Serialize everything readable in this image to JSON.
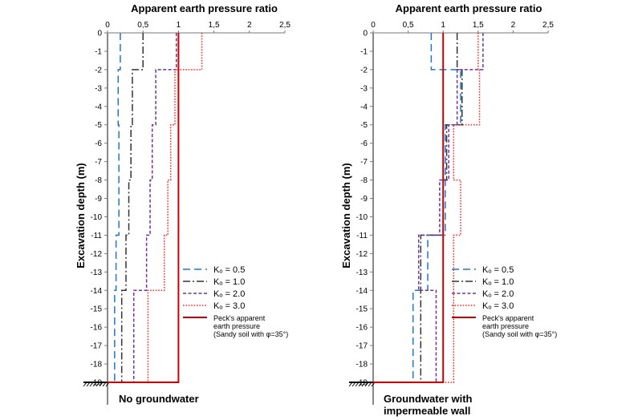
{
  "chart_data": [
    {
      "type": "line",
      "title": "Apparent earth pressure ratio",
      "ylabel": "Excavation depth (m)",
      "caption": [
        "No groundwater"
      ],
      "xlim": [
        0,
        2.5
      ],
      "ylim": [
        -19,
        0
      ],
      "x_ticks": [
        "0",
        "0,5",
        "1",
        "1,5",
        "2",
        "2,5"
      ],
      "y_ticks": [
        "0",
        "-1",
        "-2",
        "-3",
        "-4",
        "-5",
        "-6",
        "-7",
        "-8",
        "-9",
        "-10",
        "-11",
        "-12",
        "-13",
        "-14",
        "-15",
        "-16",
        "-17",
        "-18",
        "-19"
      ],
      "series": [
        {
          "name": "Ko = 0.5",
          "color": "#1f77c8",
          "dash": "long-dash",
          "segments": [
            [
              0.18,
              0,
              -2
            ],
            [
              0.15,
              -2,
              -5
            ],
            [
              0.16,
              -5,
              -11
            ],
            [
              0.12,
              -11,
              -14
            ],
            [
              0.1,
              -14,
              -19
            ]
          ]
        },
        {
          "name": "Ko = 1.0",
          "color": "#333333",
          "dash": "dash-dot",
          "segments": [
            [
              0.5,
              0,
              -2
            ],
            [
              0.35,
              -2,
              -5
            ],
            [
              0.33,
              -5,
              -8
            ],
            [
              0.3,
              -8,
              -11
            ],
            [
              0.26,
              -11,
              -14
            ],
            [
              0.2,
              -14,
              -19
            ]
          ]
        },
        {
          "name": "Ko = 2.0",
          "color": "#7030a0",
          "dash": "short-dash",
          "segments": [
            [
              0.97,
              0,
              -2
            ],
            [
              0.68,
              -2,
              -5
            ],
            [
              0.63,
              -5,
              -8
            ],
            [
              0.6,
              -8,
              -11
            ],
            [
              0.55,
              -11,
              -14
            ],
            [
              0.37,
              -14,
              -19
            ]
          ]
        },
        {
          "name": "Ko = 3.0",
          "color": "#ff2a2a",
          "dash": "dotted",
          "segments": [
            [
              1.33,
              0,
              -2
            ],
            [
              0.95,
              -2,
              -5
            ],
            [
              0.89,
              -5,
              -8
            ],
            [
              0.85,
              -8,
              -11
            ],
            [
              0.8,
              -11,
              -14
            ],
            [
              0.57,
              -14,
              -19
            ]
          ]
        },
        {
          "name": "Peck's apparent earth pressure (Sandy soil with φ=35°)",
          "color": "#d00000",
          "dash": "solid",
          "segments": [
            [
              1.0,
              0,
              -19
            ]
          ]
        }
      ]
    },
    {
      "type": "line",
      "title": "Apparent earth pressure ratio",
      "ylabel": "Excavation depth (m)",
      "caption": [
        "Groundwater with",
        "impermeable wall"
      ],
      "xlim": [
        0,
        2.5
      ],
      "ylim": [
        -19,
        0
      ],
      "x_ticks": [
        "0",
        "0,5",
        "1",
        "1,5",
        "2",
        "2,5"
      ],
      "y_ticks": [
        "0",
        "-1",
        "-2",
        "-3",
        "-4",
        "-5",
        "-6",
        "-7",
        "-8",
        "-9",
        "-10",
        "-11",
        "-12",
        "-13",
        "-14",
        "-15",
        "-16",
        "-17",
        "-18",
        "-19"
      ],
      "series": [
        {
          "name": "Ko = 0.5",
          "color": "#1f77c8",
          "dash": "long-dash",
          "segments": [
            [
              0.83,
              0,
              -2
            ],
            [
              1.25,
              -2,
              -5
            ],
            [
              1.03,
              -5,
              -11
            ],
            [
              0.78,
              -11,
              -14
            ],
            [
              0.57,
              -14,
              -19
            ]
          ]
        },
        {
          "name": "Ko = 1.0",
          "color": "#333333",
          "dash": "dash-dot",
          "segments": [
            [
              1.2,
              0,
              -2
            ],
            [
              1.27,
              -2,
              -5
            ],
            [
              1.05,
              -5,
              -8
            ],
            [
              1.0,
              -8,
              -11
            ],
            [
              0.68,
              -11,
              -14
            ],
            [
              0.68,
              -14,
              -19
            ]
          ]
        },
        {
          "name": "Ko = 2.0",
          "color": "#7030a0",
          "dash": "short-dash",
          "segments": [
            [
              1.57,
              0,
              -2
            ],
            [
              1.2,
              -2,
              -5
            ],
            [
              1.08,
              -5,
              -8
            ],
            [
              0.95,
              -8,
              -11
            ],
            [
              0.65,
              -11,
              -14
            ],
            [
              0.9,
              -14,
              -19
            ]
          ]
        },
        {
          "name": "Ko = 3.0",
          "color": "#ff2a2a",
          "dash": "dotted",
          "segments": [
            [
              1.5,
              0,
              -2
            ],
            [
              1.52,
              -2,
              -5
            ],
            [
              1.15,
              -5,
              -8
            ],
            [
              1.25,
              -8,
              -11
            ],
            [
              1.15,
              -11,
              -14
            ],
            [
              1.15,
              -14,
              -19
            ]
          ]
        },
        {
          "name": "Peck's apparent earth pressure (Sandy soil with φ=35°)",
          "color": "#d00000",
          "dash": "solid",
          "segments": [
            [
              1.0,
              0,
              -19
            ]
          ]
        }
      ]
    }
  ],
  "legend": [
    {
      "key": "ko05",
      "text": "Kₒ = 0.5",
      "small": false
    },
    {
      "key": "ko10",
      "text": "Kₒ = 1.0",
      "small": false
    },
    {
      "key": "ko20",
      "text": "Kₒ = 2.0",
      "small": false
    },
    {
      "key": "ko30",
      "text": "Kₒ = 3.0",
      "small": false
    },
    {
      "key": "peck",
      "text": [
        "Peck's apparent",
        "earth pressure",
        "(Sandy soil with φ=35°)"
      ],
      "small": true
    }
  ]
}
